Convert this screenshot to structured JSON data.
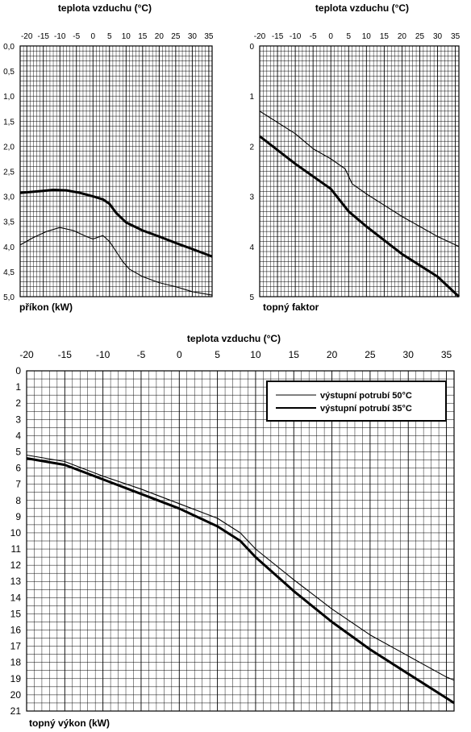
{
  "colors": {
    "ink": "#000000",
    "grid": "#000000",
    "background": "#ffffff"
  },
  "chart_data": [
    {
      "id": "power-input",
      "type": "line",
      "title": "teplota vzduchu (°C)",
      "xlabel": "teplota vzduchu (°C)",
      "ylabel": "příkon (kW)",
      "xlim": [
        -22,
        36
      ],
      "ylim": [
        0.0,
        5.0
      ],
      "y_inverted": true,
      "x_ticks": [
        -20,
        -15,
        -10,
        -5,
        0,
        5,
        10,
        15,
        20,
        25,
        30,
        35
      ],
      "x_tick_labels": [
        "-20",
        "-15",
        "-10",
        "-5",
        "0",
        "5",
        "10",
        "15",
        "20",
        "25",
        "30",
        "35"
      ],
      "y_ticks": [
        0,
        0.5,
        1,
        1.5,
        2,
        2.5,
        3,
        3.5,
        4,
        4.5,
        5
      ],
      "y_tick_labels": [
        "0,0",
        "0,5",
        "1,0",
        "1,5",
        "2,0",
        "2,5",
        "3,0",
        "3,5",
        "4,0",
        "4,5",
        "5,0"
      ],
      "grid": true,
      "series": [
        {
          "style": "thick",
          "x": [
            -22,
            -15,
            -12,
            -8,
            -4,
            0,
            3,
            5,
            7,
            10,
            15,
            20,
            25,
            30,
            36
          ],
          "y": [
            2.93,
            2.89,
            2.87,
            2.88,
            2.93,
            3.0,
            3.06,
            3.15,
            3.33,
            3.52,
            3.68,
            3.8,
            3.93,
            4.05,
            4.2
          ]
        },
        {
          "style": "thin",
          "x": [
            -22,
            -18,
            -14,
            -10,
            -6,
            -2,
            0,
            3,
            5,
            7,
            9,
            11,
            15,
            20,
            25,
            30,
            36
          ],
          "y": [
            3.97,
            3.82,
            3.7,
            3.62,
            3.68,
            3.8,
            3.85,
            3.78,
            3.9,
            4.1,
            4.3,
            4.45,
            4.6,
            4.72,
            4.8,
            4.9,
            4.97
          ]
        }
      ]
    },
    {
      "id": "heating-factor",
      "type": "line",
      "title": "teplota vzduchu (°C)",
      "xlabel": "teplota vzduchu (°C)",
      "ylabel": "topný faktor",
      "xlim": [
        -20,
        36
      ],
      "ylim": [
        0,
        5
      ],
      "y_inverted": true,
      "x_ticks": [
        -20,
        -15,
        -10,
        -5,
        0,
        5,
        10,
        15,
        20,
        25,
        30,
        35
      ],
      "x_tick_labels": [
        "-20",
        "-15",
        "-10",
        "-5",
        "0",
        "5",
        "10",
        "15",
        "20",
        "25",
        "30",
        "35"
      ],
      "y_ticks": [
        0,
        1,
        2,
        3,
        4,
        5
      ],
      "y_tick_labels": [
        "0",
        "1",
        "2",
        "3",
        "4",
        "5"
      ],
      "grid": true,
      "series": [
        {
          "style": "thin",
          "x": [
            -20,
            -10,
            -5,
            0,
            4,
            6,
            10,
            20,
            30,
            36
          ],
          "y": [
            1.3,
            1.75,
            2.05,
            2.25,
            2.45,
            2.75,
            2.95,
            3.4,
            3.8,
            4.0
          ]
        },
        {
          "style": "thick",
          "x": [
            -20,
            -10,
            0,
            5,
            10,
            20,
            30,
            36
          ],
          "y": [
            1.8,
            2.35,
            2.85,
            3.3,
            3.6,
            4.15,
            4.6,
            5.0
          ]
        }
      ]
    },
    {
      "id": "heating-output",
      "type": "line",
      "title": "teplota vzduchu (°C)",
      "xlabel": "teplota vzduchu (°C)",
      "ylabel": "topný výkon (kW)",
      "xlim": [
        -20,
        36
      ],
      "ylim": [
        0,
        21
      ],
      "y_inverted": true,
      "x_ticks": [
        -20,
        -15,
        -10,
        -5,
        0,
        5,
        10,
        15,
        20,
        25,
        30,
        35
      ],
      "x_tick_labels": [
        "-20",
        "-15",
        "-10",
        "-5",
        "0",
        "5",
        "10",
        "15",
        "20",
        "25",
        "30",
        "35"
      ],
      "y_ticks": [
        0,
        1,
        2,
        3,
        4,
        5,
        6,
        7,
        8,
        9,
        10,
        11,
        12,
        13,
        14,
        15,
        16,
        17,
        18,
        19,
        20,
        21
      ],
      "y_tick_labels": [
        "0",
        "1",
        "2",
        "3",
        "4",
        "5",
        "6",
        "7",
        "8",
        "9",
        "10",
        "11",
        "12",
        "13",
        "14",
        "15",
        "16",
        "17",
        "18",
        "19",
        "20",
        "21"
      ],
      "grid": true,
      "legend_position": "top-right",
      "series": [
        {
          "name": "výstupní potrubí 50°C",
          "style": "thin",
          "x": [
            -20,
            -15,
            -10,
            -5,
            0,
            5,
            8,
            10,
            15,
            20,
            25,
            30,
            35,
            36
          ],
          "y": [
            5.2,
            5.6,
            6.5,
            7.3,
            8.2,
            9.1,
            10.0,
            11.0,
            12.9,
            14.7,
            16.3,
            17.6,
            18.9,
            19.1
          ]
        },
        {
          "name": "výstupní potrubí 35°C",
          "style": "thick",
          "x": [
            -20,
            -15,
            -10,
            -5,
            0,
            5,
            8,
            10,
            15,
            20,
            25,
            30,
            35,
            36
          ],
          "y": [
            5.4,
            5.8,
            6.7,
            7.6,
            8.5,
            9.6,
            10.5,
            11.5,
            13.6,
            15.5,
            17.2,
            18.7,
            20.2,
            20.5
          ]
        }
      ]
    }
  ]
}
